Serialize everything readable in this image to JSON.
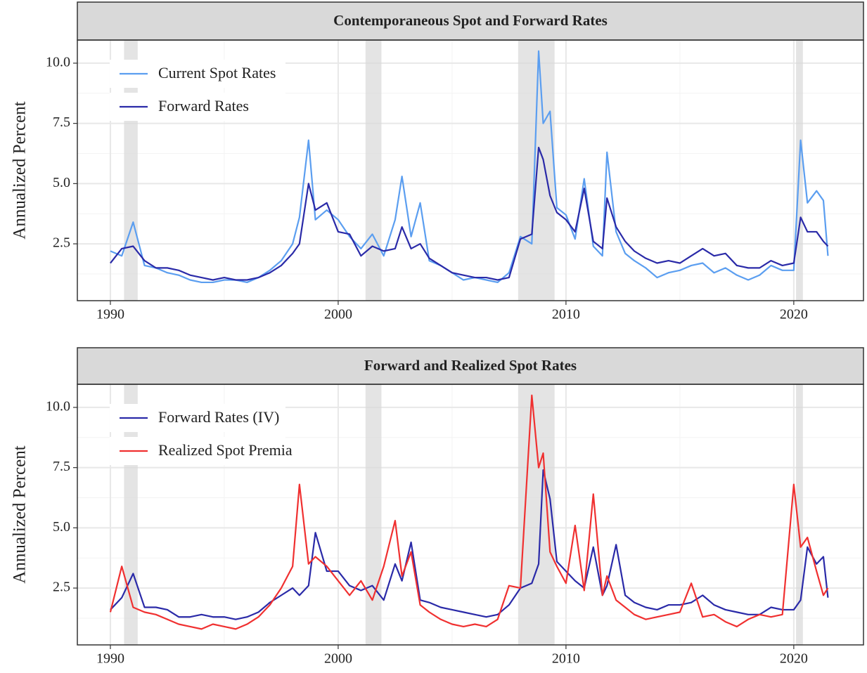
{
  "chart_data": [
    {
      "type": "line",
      "title": "Contemporaneous Spot and Forward Rates",
      "y_label": "Annualized Percent",
      "x": [
        1990.0,
        1990.5,
        1991.0,
        1991.5,
        1992.0,
        1992.5,
        1993.0,
        1993.5,
        1994.0,
        1994.5,
        1995.0,
        1995.5,
        1996.0,
        1996.5,
        1997.0,
        1997.5,
        1998.0,
        1998.3,
        1998.7,
        1999.0,
        1999.5,
        2000.0,
        2000.5,
        2001.0,
        2001.5,
        2002.0,
        2002.5,
        2002.8,
        2003.2,
        2003.6,
        2004.0,
        2004.5,
        2005.0,
        2005.5,
        2006.0,
        2006.5,
        2007.0,
        2007.5,
        2008.0,
        2008.5,
        2008.8,
        2009.0,
        2009.3,
        2009.6,
        2010.0,
        2010.4,
        2010.8,
        2011.2,
        2011.6,
        2011.8,
        2012.2,
        2012.6,
        2013.0,
        2013.5,
        2014.0,
        2014.5,
        2015.0,
        2015.5,
        2016.0,
        2016.5,
        2017.0,
        2017.5,
        2018.0,
        2018.5,
        2019.0,
        2019.5,
        2020.0,
        2020.3,
        2020.6,
        2021.0,
        2021.3,
        2021.5
      ],
      "series": [
        {
          "name": "Current Spot Rates",
          "color": "#5b9ef0",
          "values": [
            2.2,
            2.0,
            3.4,
            1.6,
            1.5,
            1.3,
            1.2,
            1.0,
            0.9,
            0.9,
            1.0,
            1.0,
            0.9,
            1.1,
            1.4,
            1.8,
            2.5,
            3.6,
            6.8,
            3.5,
            3.9,
            3.5,
            2.8,
            2.3,
            2.9,
            2.0,
            3.5,
            5.3,
            2.8,
            4.2,
            1.8,
            1.6,
            1.3,
            1.0,
            1.1,
            1.0,
            0.9,
            1.3,
            2.8,
            2.5,
            10.5,
            7.5,
            8.0,
            4.0,
            3.7,
            2.7,
            5.2,
            2.4,
            2.0,
            6.3,
            3.0,
            2.1,
            1.8,
            1.5,
            1.1,
            1.3,
            1.4,
            1.6,
            1.7,
            1.3,
            1.5,
            1.2,
            1.0,
            1.2,
            1.6,
            1.4,
            1.4,
            6.8,
            4.2,
            4.7,
            4.3,
            2.0
          ]
        },
        {
          "name": "Forward Rates",
          "color": "#2a2aa8",
          "values": [
            1.7,
            2.3,
            2.4,
            1.8,
            1.5,
            1.5,
            1.4,
            1.2,
            1.1,
            1.0,
            1.1,
            1.0,
            1.0,
            1.1,
            1.3,
            1.6,
            2.1,
            2.5,
            5.0,
            3.9,
            4.2,
            3.0,
            2.9,
            2.0,
            2.4,
            2.2,
            2.3,
            3.2,
            2.3,
            2.5,
            1.9,
            1.6,
            1.3,
            1.2,
            1.1,
            1.1,
            1.0,
            1.1,
            2.7,
            2.9,
            6.5,
            6.0,
            4.5,
            3.8,
            3.5,
            3.0,
            4.8,
            2.6,
            2.3,
            4.4,
            3.2,
            2.6,
            2.2,
            1.9,
            1.7,
            1.8,
            1.7,
            2.0,
            2.3,
            2.0,
            2.1,
            1.6,
            1.5,
            1.5,
            1.8,
            1.6,
            1.7,
            3.6,
            3.0,
            3.0,
            2.6,
            2.4
          ]
        }
      ],
      "xlim": [
        1988.55,
        2023.06
      ],
      "xticks": [
        1990,
        2000,
        2010,
        2020
      ],
      "ylim": [
        0.14,
        10.96
      ],
      "yticks": [
        {
          "value": 2.5,
          "label": "2.5"
        },
        {
          "value": 5,
          "label": "5.0"
        },
        {
          "value": 7.5,
          "label": "7.5"
        },
        {
          "value": 10,
          "label": "10.0"
        }
      ],
      "shaded_periods": [
        [
          1990.6,
          1991.2
        ],
        [
          2001.2,
          2001.9
        ],
        [
          2007.9,
          2009.5
        ],
        [
          2020.1,
          2020.4
        ]
      ],
      "grid": true,
      "legend": "top-left"
    },
    {
      "type": "line",
      "title": "Forward and Realized Spot Rates",
      "y_label": "Annualized Percent",
      "x": [
        1990.0,
        1990.5,
        1991.0,
        1991.5,
        1992.0,
        1992.5,
        1993.0,
        1993.5,
        1994.0,
        1994.5,
        1995.0,
        1995.5,
        1996.0,
        1996.5,
        1997.0,
        1997.5,
        1998.0,
        1998.3,
        1998.7,
        1999.0,
        1999.5,
        2000.0,
        2000.5,
        2001.0,
        2001.5,
        2002.0,
        2002.5,
        2002.8,
        2003.2,
        2003.6,
        2004.0,
        2004.5,
        2005.0,
        2005.5,
        2006.0,
        2006.5,
        2007.0,
        2007.5,
        2008.0,
        2008.5,
        2008.8,
        2009.0,
        2009.3,
        2009.6,
        2010.0,
        2010.4,
        2010.8,
        2011.2,
        2011.6,
        2011.8,
        2012.2,
        2012.6,
        2013.0,
        2013.5,
        2014.0,
        2014.5,
        2015.0,
        2015.5,
        2016.0,
        2016.5,
        2017.0,
        2017.5,
        2018.0,
        2018.5,
        2019.0,
        2019.5,
        2020.0,
        2020.3,
        2020.6,
        2021.0,
        2021.3,
        2021.5
      ],
      "series": [
        {
          "name": "Forward Rates (IV)",
          "color": "#2a2aa8",
          "values": [
            1.6,
            2.1,
            3.1,
            1.7,
            1.7,
            1.6,
            1.3,
            1.3,
            1.4,
            1.3,
            1.3,
            1.2,
            1.3,
            1.5,
            1.9,
            2.2,
            2.5,
            2.2,
            2.6,
            4.8,
            3.2,
            3.2,
            2.6,
            2.4,
            2.6,
            2.0,
            3.5,
            2.8,
            4.4,
            2.0,
            1.9,
            1.7,
            1.6,
            1.5,
            1.4,
            1.3,
            1.4,
            1.8,
            2.5,
            2.7,
            3.5,
            7.4,
            6.2,
            3.6,
            3.2,
            2.8,
            2.5,
            4.2,
            2.2,
            2.6,
            4.3,
            2.2,
            1.9,
            1.7,
            1.6,
            1.8,
            1.8,
            1.9,
            2.2,
            1.8,
            1.6,
            1.5,
            1.4,
            1.4,
            1.7,
            1.6,
            1.6,
            2.0,
            4.2,
            3.5,
            3.8,
            2.1
          ]
        },
        {
          "name": "Realized Spot Premia",
          "color": "#f03030",
          "values": [
            1.5,
            3.4,
            1.7,
            1.5,
            1.4,
            1.2,
            1.0,
            0.9,
            0.8,
            1.0,
            0.9,
            0.8,
            1.0,
            1.3,
            1.8,
            2.5,
            3.4,
            6.8,
            3.5,
            3.8,
            3.4,
            2.8,
            2.2,
            2.8,
            2.0,
            3.4,
            5.3,
            3.0,
            4.0,
            1.8,
            1.5,
            1.2,
            1.0,
            0.9,
            1.0,
            0.9,
            1.2,
            2.6,
            2.5,
            10.5,
            7.5,
            8.1,
            4.0,
            3.4,
            2.7,
            5.1,
            2.4,
            6.4,
            2.2,
            3.0,
            2.0,
            1.7,
            1.4,
            1.2,
            1.3,
            1.4,
            1.5,
            2.7,
            1.3,
            1.4,
            1.1,
            0.9,
            1.2,
            1.4,
            1.3,
            1.4,
            6.8,
            4.2,
            4.6,
            3.2,
            2.2,
            2.5
          ]
        }
      ],
      "xlim": [
        1988.55,
        2023.06
      ],
      "xticks": [
        1990,
        2000,
        2010,
        2020
      ],
      "ylim": [
        0.14,
        10.96
      ],
      "yticks": [
        {
          "value": 2.5,
          "label": "2.5"
        },
        {
          "value": 5,
          "label": "5.0"
        },
        {
          "value": 7.5,
          "label": "7.5"
        },
        {
          "value": 10,
          "label": "10.0"
        }
      ],
      "shaded_periods": [
        [
          1990.6,
          1991.2
        ],
        [
          2001.2,
          2001.9
        ],
        [
          2007.9,
          2009.5
        ],
        [
          2020.1,
          2020.4
        ]
      ],
      "grid": true,
      "legend": "top-left"
    }
  ]
}
